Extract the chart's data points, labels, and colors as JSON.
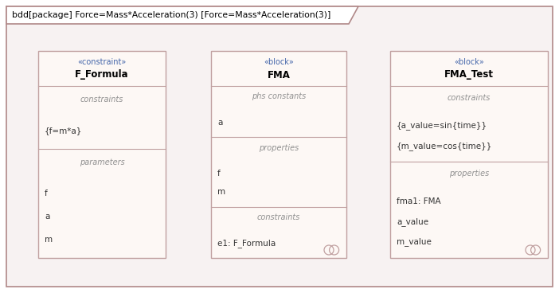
{
  "title": "bdd[package] Force=Mass*Acceleration(3) [Force=Mass*Acceleration(3)]",
  "outer_bg": "#ffffff",
  "outer_border": "#b08888",
  "diagram_bg": "#f7f2f2",
  "box_bg": "#fdf8f5",
  "box_border": "#c0a0a0",
  "header_divider": "#c0a0a0",
  "title_color": "#000000",
  "stereotype_color": "#4466aa",
  "name_color": "#000000",
  "section_label_color": "#909090",
  "item_color": "#333333",
  "boxes": [
    {
      "stereotype": "«constraint»",
      "name": "F_Formula",
      "sections": [
        {
          "label": "constraints",
          "items": [
            "{f=m*a}"
          ]
        },
        {
          "label": "parameters",
          "items": [
            "f",
            "a",
            "m"
          ]
        }
      ],
      "has_lollipop": false
    },
    {
      "stereotype": "«block»",
      "name": "FMA",
      "sections": [
        {
          "label": "phs constants",
          "items": [
            "a"
          ]
        },
        {
          "label": "properties",
          "items": [
            "f",
            "m"
          ]
        },
        {
          "label": "constraints",
          "items": [
            "e1: F_Formula"
          ]
        }
      ],
      "has_lollipop": true
    },
    {
      "stereotype": "«block»",
      "name": "FMA_Test",
      "sections": [
        {
          "label": "constraints",
          "items": [
            "{a_value=sin{time}}",
            "{m_value=cos{time}}"
          ]
        },
        {
          "label": "properties",
          "items": [
            "fma1: FMA",
            "a_value",
            "m_value"
          ]
        }
      ],
      "has_lollipop": true
    }
  ]
}
